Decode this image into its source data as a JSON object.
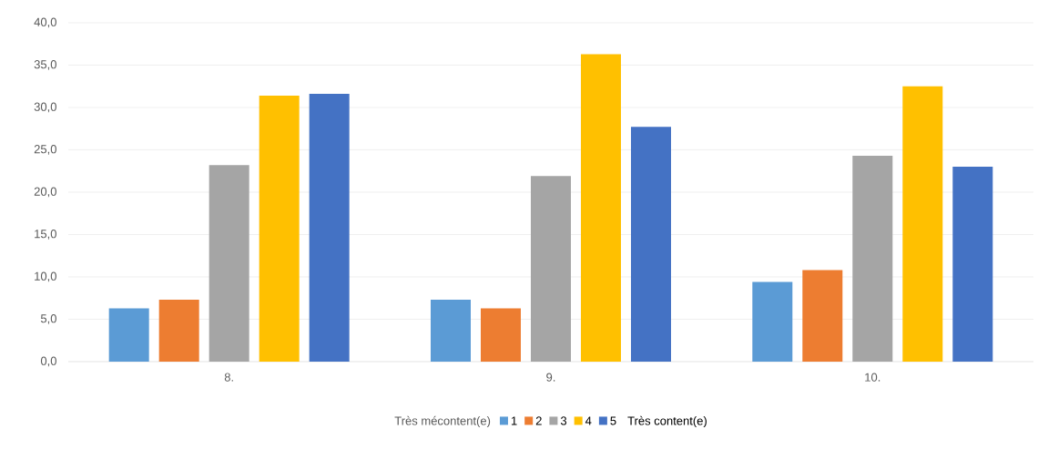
{
  "chart_data": {
    "type": "bar",
    "categories": [
      "8.",
      "9.",
      "10."
    ],
    "series": [
      {
        "name": "1",
        "color": "#5b9bd5",
        "values": [
          6.3,
          7.3,
          9.4
        ]
      },
      {
        "name": "2",
        "color": "#ed7d31",
        "values": [
          7.3,
          6.3,
          10.8
        ]
      },
      {
        "name": "3",
        "color": "#a5a5a5",
        "values": [
          23.2,
          21.9,
          24.3
        ]
      },
      {
        "name": "4",
        "color": "#ffc000",
        "values": [
          31.4,
          36.3,
          32.5
        ]
      },
      {
        "name": "5",
        "color": "#4472c4",
        "values": [
          31.6,
          27.7,
          23.0
        ]
      }
    ],
    "ylim": [
      0,
      40
    ],
    "yticks": [
      {
        "value": 0,
        "label": "0,0"
      },
      {
        "value": 5,
        "label": "5,0"
      },
      {
        "value": 10,
        "label": "10,0"
      },
      {
        "value": 15,
        "label": "15,0"
      },
      {
        "value": 20,
        "label": "20,0"
      },
      {
        "value": 25,
        "label": "25,0"
      },
      {
        "value": 30,
        "label": "30,0"
      },
      {
        "value": 35,
        "label": "35,0"
      },
      {
        "value": 40,
        "label": "40,0"
      }
    ],
    "grid": "y",
    "legend": "bottom",
    "legend_title": "Très mécontent(e)",
    "annotations": [
      "Très content(e)"
    ]
  }
}
